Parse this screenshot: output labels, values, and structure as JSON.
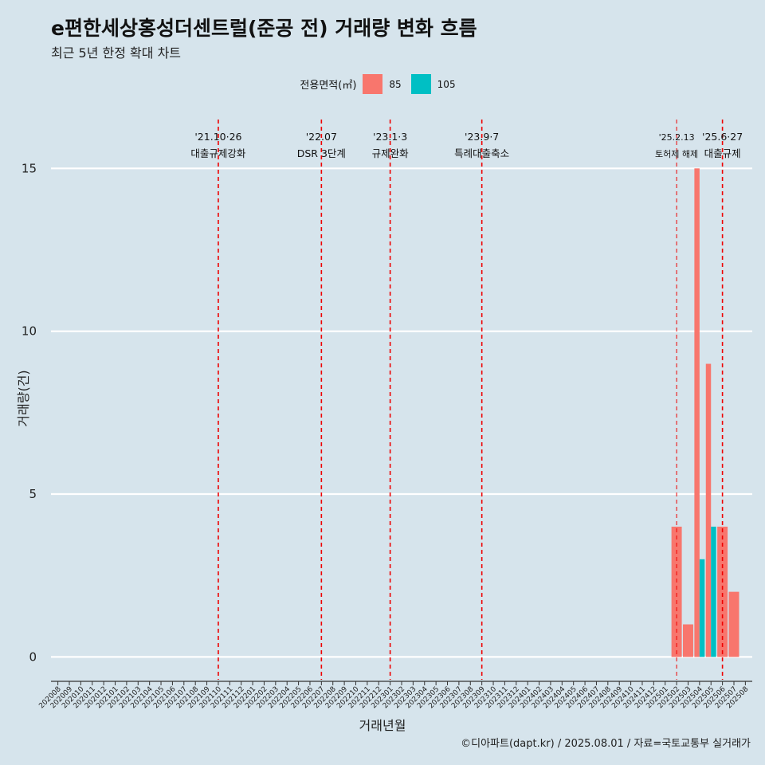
{
  "title": "e편한세상홍성더센트럴(준공 전) 거래량 변화 흐름",
  "subtitle": "최근 5년 한정 확대 차트",
  "caption": "©디아파트(dapt.kr) / 2025.08.01 / 자료=국토교통부 실거래가",
  "legend": {
    "title": "전용면적(㎡)",
    "items": [
      {
        "label": "85",
        "color": "#f8766d"
      },
      {
        "label": "105",
        "color": "#00bfc4"
      }
    ]
  },
  "chart_data": {
    "type": "bar",
    "title": "e편한세상홍성더센트럴(준공 전) 거래량 변화 흐름",
    "subtitle": "최근 5년 한정 확대 차트",
    "xlabel": "거래년월",
    "ylabel": "거래량(건)",
    "ylim": [
      -0.7,
      16.5
    ],
    "yticks": [
      0,
      5,
      10,
      15
    ],
    "grid": true,
    "legend_position": "top",
    "categories": [
      "202008",
      "202009",
      "202010",
      "202011",
      "202012",
      "202101",
      "202102",
      "202103",
      "202104",
      "202105",
      "202106",
      "202107",
      "202108",
      "202109",
      "202110",
      "202111",
      "202112",
      "202201",
      "202202",
      "202203",
      "202204",
      "202205",
      "202206",
      "202207",
      "202208",
      "202209",
      "202210",
      "202211",
      "202212",
      "202301",
      "202302",
      "202303",
      "202304",
      "202305",
      "202306",
      "202307",
      "202308",
      "202309",
      "202310",
      "202311",
      "202312",
      "202401",
      "202402",
      "202403",
      "202404",
      "202405",
      "202406",
      "202407",
      "202408",
      "202409",
      "202410",
      "202411",
      "202412",
      "202501",
      "202502",
      "202503",
      "202504",
      "202505",
      "202506",
      "202507",
      "202508"
    ],
    "series": [
      {
        "name": "85",
        "color": "#f8766d",
        "values": [
          0,
          0,
          0,
          0,
          0,
          0,
          0,
          0,
          0,
          0,
          0,
          0,
          0,
          0,
          0,
          0,
          0,
          0,
          0,
          0,
          0,
          0,
          0,
          0,
          0,
          0,
          0,
          0,
          0,
          0,
          0,
          0,
          0,
          0,
          0,
          0,
          0,
          0,
          0,
          0,
          0,
          0,
          0,
          0,
          0,
          0,
          0,
          0,
          0,
          0,
          0,
          0,
          0,
          0,
          4,
          1,
          15,
          9,
          4,
          2,
          0
        ]
      },
      {
        "name": "105",
        "color": "#00bfc4",
        "values": [
          0,
          0,
          0,
          0,
          0,
          0,
          0,
          0,
          0,
          0,
          0,
          0,
          0,
          0,
          0,
          0,
          0,
          0,
          0,
          0,
          0,
          0,
          0,
          0,
          0,
          0,
          0,
          0,
          0,
          0,
          0,
          0,
          0,
          0,
          0,
          0,
          0,
          0,
          0,
          0,
          0,
          0,
          0,
          0,
          0,
          0,
          0,
          0,
          0,
          0,
          0,
          0,
          0,
          0,
          0,
          0,
          3,
          4,
          0,
          0,
          0
        ]
      }
    ],
    "annotations": [
      {
        "x": 14.0,
        "line1": "'21.10·26",
        "line2": "대출규제강화",
        "small": false
      },
      {
        "x": 23.0,
        "line1": "'22.07",
        "line2": "DSR 3단계",
        "small": false
      },
      {
        "x": 29.0,
        "line1": "'23.1·3",
        "line2": "규제완화",
        "small": false
      },
      {
        "x": 37.0,
        "line1": "'23.9·7",
        "line2": "특례대출축소",
        "small": false
      },
      {
        "x": 54.0,
        "line1": "'25.2.13",
        "line2": "토허제 해제",
        "small": true
      },
      {
        "x": 58.0,
        "line1": "'25.6·27",
        "line2": "대출규제",
        "small": false
      }
    ]
  }
}
